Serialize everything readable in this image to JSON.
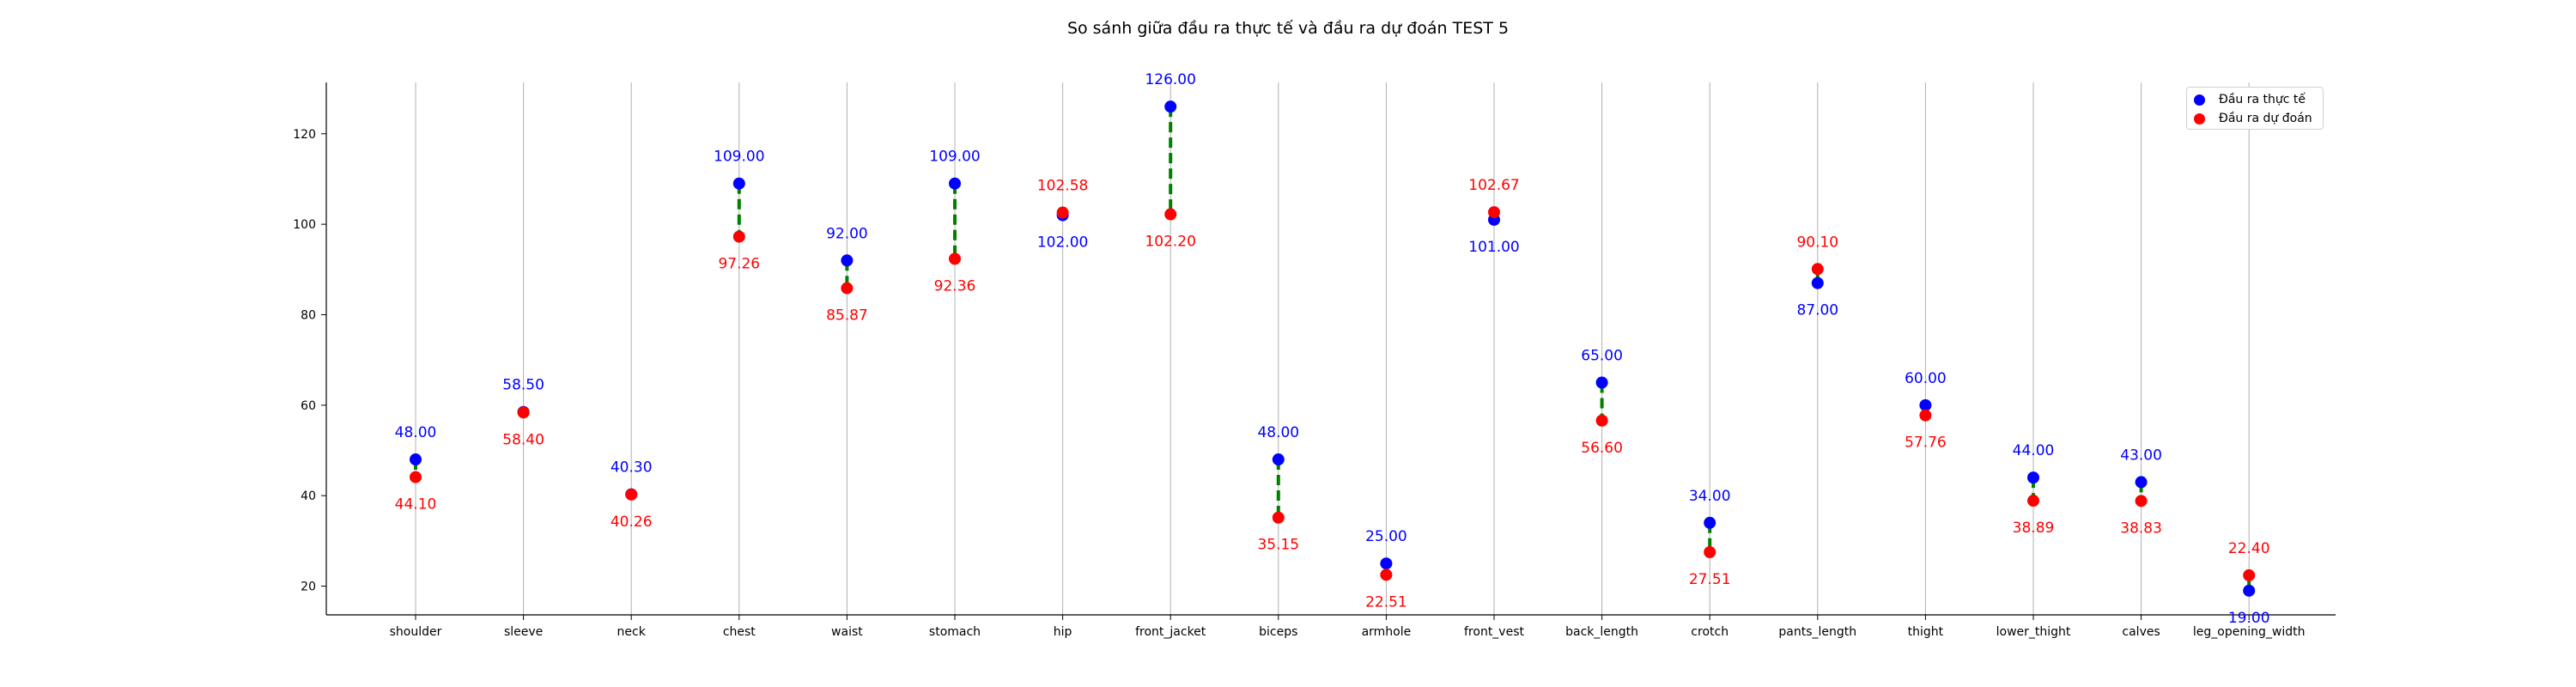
{
  "chart_data": {
    "type": "scatter",
    "title": "So sánh giữa đầu ra thực tế và đầu ra dự đoán TEST 5",
    "categories": [
      "shoulder",
      "sleeve",
      "neck",
      "chest",
      "waist",
      "stomach",
      "hip",
      "front_jacket",
      "biceps",
      "armhole",
      "front_vest",
      "back_length",
      "crotch",
      "pants_length",
      "thight",
      "lower_thight",
      "calves",
      "leg_opening_width"
    ],
    "series": [
      {
        "name": "Đầu ra thực tế",
        "color": "#0000ff",
        "values": [
          48.0,
          58.5,
          40.3,
          109.0,
          92.0,
          109.0,
          102.0,
          126.0,
          48.0,
          25.0,
          101.0,
          65.0,
          34.0,
          87.0,
          60.0,
          44.0,
          43.0,
          19.0
        ],
        "labels": [
          "48.00",
          "58.50",
          "40.30",
          "109.00",
          "92.00",
          "109.00",
          "102.00",
          "126.00",
          "48.00",
          "25.00",
          "101.00",
          "65.00",
          "34.00",
          "87.00",
          "60.00",
          "44.00",
          "43.00",
          "19.00"
        ]
      },
      {
        "name": "Đầu ra dự đoán",
        "color": "#ff0000",
        "values": [
          44.1,
          58.4,
          40.26,
          97.26,
          85.87,
          92.36,
          102.58,
          102.2,
          35.15,
          22.51,
          102.67,
          56.6,
          27.51,
          90.1,
          57.76,
          38.89,
          38.83,
          22.4
        ],
        "labels": [
          "44.10",
          "58.40",
          "40.26",
          "97.26",
          "85.87",
          "92.36",
          "102.58",
          "102.20",
          "35.15",
          "22.51",
          "102.67",
          "56.60",
          "27.51",
          "90.10",
          "57.76",
          "38.89",
          "38.83",
          "22.40"
        ]
      }
    ],
    "connector_color": "#008000",
    "yticks": [
      20,
      40,
      60,
      80,
      100,
      120
    ],
    "ytick_labels": [
      "20",
      "40",
      "60",
      "80",
      "100",
      "120"
    ],
    "ylim": [
      13.65,
      131.35
    ],
    "grid": "vertical",
    "legend_position": "top-right"
  }
}
